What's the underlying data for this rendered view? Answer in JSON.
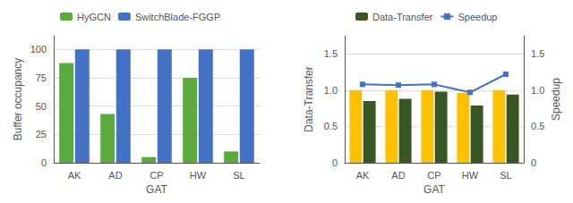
{
  "chart_data": [
    {
      "type": "bar",
      "categories": [
        "AK",
        "AD",
        "CP",
        "HW",
        "SL"
      ],
      "xlabel": "GAT",
      "ylabel": "Buffer occupancy",
      "series": [
        {
          "name": "HyGCN",
          "color": "#5aaa3c",
          "values": [
            88,
            43,
            5,
            75,
            10
          ]
        },
        {
          "name": "SwitchBlade-FGGP",
          "color": "#4472c4",
          "values": [
            100,
            100,
            100,
            100,
            100
          ]
        }
      ],
      "ylim": [
        0,
        112
      ],
      "yticks": [
        0,
        25,
        50,
        75,
        100
      ],
      "grid": true,
      "legend": "top"
    },
    {
      "type": "bar",
      "categories": [
        "AK",
        "AD",
        "CP",
        "HW",
        "SL"
      ],
      "xlabel": "GAT",
      "ylabel": "Data-Transfer",
      "y2label": "Speedup",
      "series": [
        {
          "color": "#ffc000",
          "values": [
            1.0,
            1.0,
            1.0,
            0.96,
            1.0
          ]
        },
        {
          "name": "Data-Transfer",
          "color": "#375623",
          "values": [
            0.85,
            0.88,
            0.98,
            0.79,
            0.94
          ]
        },
        {
          "name": "Speedup",
          "type": "line",
          "marker": "square",
          "axis": "y2",
          "color": "#4472c4",
          "values": [
            1.08,
            1.07,
            1.08,
            0.97,
            1.22
          ]
        }
      ],
      "ylim": [
        0,
        1.75
      ],
      "yticks": [
        0,
        0.5,
        {
          "value": 1,
          "label": "1.0"
        },
        1.5
      ],
      "y2lim": [
        0,
        1.75
      ],
      "y2ticks": [
        0,
        0.5,
        {
          "value": 1,
          "label": "1.0"
        },
        1.5
      ],
      "grid": true,
      "legend": "top"
    }
  ]
}
